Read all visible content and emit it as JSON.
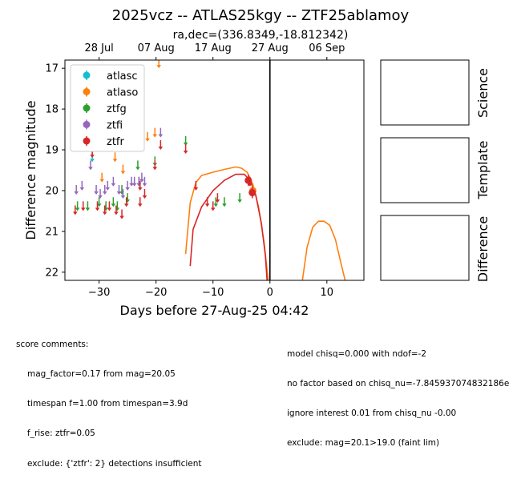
{
  "title": "2025vcz -- ATLAS25kgy -- ZTF25ablamoy",
  "chart_data": {
    "type": "scatter",
    "top_axis_label": "ra,dec=(336.8349,-18.812342)",
    "top_ticks": [
      {
        "x": -30.0,
        "label": "28 Jul"
      },
      {
        "x": -20.0,
        "label": "07 Aug"
      },
      {
        "x": -10.0,
        "label": "17 Aug"
      },
      {
        "x": 0.0,
        "label": "27 Aug"
      },
      {
        "x": 10.0,
        "label": "06 Sep"
      }
    ],
    "xlabel": "Days before 27-Aug-25 04:42",
    "ylabel": "Difference magnitude",
    "xlim": [
      -36,
      16.5
    ],
    "ylim": [
      22.2,
      16.8
    ],
    "xticks": [
      -30,
      -20,
      -10,
      0,
      10
    ],
    "yticks": [
      17,
      18,
      19,
      20,
      21,
      22
    ],
    "vline_x": 0,
    "legend_position": "top-left",
    "series": [
      {
        "name": "atlasc",
        "color": "#17becf",
        "detections": [],
        "upper_limits": [
          [
            -31.2,
            19.2
          ]
        ]
      },
      {
        "name": "atlaso",
        "color": "#ff7f0e",
        "detections": [
          [
            -3.0,
            20.0
          ]
        ],
        "upper_limits": [
          [
            -29.5,
            19.7
          ],
          [
            -27.2,
            19.2
          ],
          [
            -25.8,
            19.5
          ],
          [
            -21.5,
            18.7
          ],
          [
            -20.2,
            18.6
          ],
          [
            -19.5,
            16.9
          ]
        ]
      },
      {
        "name": "ztfg",
        "color": "#2ca02c",
        "detections": [],
        "upper_limits": [
          [
            -33.8,
            20.4
          ],
          [
            -32.0,
            20.4
          ],
          [
            -30.0,
            20.3
          ],
          [
            -28.8,
            20.4
          ],
          [
            -27.5,
            20.3
          ],
          [
            -26.8,
            20.4
          ],
          [
            -26.0,
            20.0
          ],
          [
            -25.0,
            20.2
          ],
          [
            -23.2,
            19.4
          ],
          [
            -23.0,
            19.8
          ],
          [
            -20.2,
            19.3
          ],
          [
            -14.8,
            18.8
          ],
          [
            -9.5,
            20.3
          ],
          [
            -8.0,
            20.3
          ],
          [
            -5.3,
            20.2
          ]
        ]
      },
      {
        "name": "ztfi",
        "color": "#9467bd",
        "detections": [],
        "upper_limits": [
          [
            -34.0,
            20.0
          ],
          [
            -33.0,
            19.9
          ],
          [
            -31.5,
            19.4
          ],
          [
            -30.5,
            20.0
          ],
          [
            -29.8,
            20.1
          ],
          [
            -29.0,
            20.0
          ],
          [
            -28.5,
            19.9
          ],
          [
            -27.5,
            19.8
          ],
          [
            -26.5,
            20.0
          ],
          [
            -25.8,
            20.1
          ],
          [
            -25.0,
            19.9
          ],
          [
            -24.3,
            19.8
          ],
          [
            -23.8,
            19.8
          ],
          [
            -23.0,
            19.8
          ],
          [
            -22.5,
            19.7
          ],
          [
            -22.0,
            19.8
          ],
          [
            -19.2,
            18.6
          ]
        ]
      },
      {
        "name": "ztfr",
        "color": "#d62728",
        "detections": [
          [
            -3.8,
            19.75
          ],
          [
            -3.1,
            20.05
          ]
        ],
        "upper_limits": [
          [
            -34.2,
            20.5
          ],
          [
            -32.8,
            20.4
          ],
          [
            -31.2,
            19.1
          ],
          [
            -30.3,
            20.4
          ],
          [
            -29.0,
            20.5
          ],
          [
            -28.2,
            20.4
          ],
          [
            -27.0,
            20.5
          ],
          [
            -26.0,
            20.6
          ],
          [
            -25.2,
            20.3
          ],
          [
            -22.8,
            20.3
          ],
          [
            -22.8,
            19.9
          ],
          [
            -22.0,
            20.1
          ],
          [
            -20.2,
            19.4
          ],
          [
            -19.2,
            18.9
          ],
          [
            -14.8,
            19.0
          ],
          [
            -13.0,
            19.9
          ],
          [
            -11.0,
            20.3
          ],
          [
            -10.0,
            20.4
          ],
          [
            -9.2,
            20.2
          ],
          [
            -3.5,
            19.8
          ]
        ]
      }
    ],
    "model_curves": [
      {
        "name": "atlaso",
        "color": "#ff7f0e",
        "points": [
          [
            -14.8,
            21.55
          ],
          [
            -14.0,
            20.3
          ],
          [
            -13.0,
            19.8
          ],
          [
            -12.0,
            19.63
          ],
          [
            -10.0,
            19.55
          ],
          [
            -8.0,
            19.48
          ],
          [
            -6.0,
            19.42
          ],
          [
            -5.0,
            19.45
          ],
          [
            -4.0,
            19.55
          ],
          [
            -3.0,
            19.85
          ],
          [
            -2.0,
            20.4
          ],
          [
            -1.0,
            21.3
          ],
          [
            -0.3,
            22.2
          ]
        ]
      },
      {
        "name": "atlaso",
        "color": "#ff7f0e",
        "points": [
          [
            5.7,
            22.2
          ],
          [
            6.5,
            21.4
          ],
          [
            7.5,
            20.9
          ],
          [
            8.5,
            20.75
          ],
          [
            9.5,
            20.75
          ],
          [
            10.5,
            20.85
          ],
          [
            11.5,
            21.2
          ],
          [
            12.5,
            21.8
          ],
          [
            13.2,
            22.2
          ]
        ]
      },
      {
        "name": "ztfr",
        "color": "#d62728",
        "points": [
          [
            -14.0,
            21.85
          ],
          [
            -13.5,
            20.95
          ],
          [
            -12.0,
            20.4
          ],
          [
            -10.0,
            20.0
          ],
          [
            -8.0,
            19.75
          ],
          [
            -6.0,
            19.6
          ],
          [
            -4.5,
            19.6
          ],
          [
            -3.5,
            19.75
          ],
          [
            -2.5,
            20.1
          ],
          [
            -1.5,
            20.8
          ],
          [
            -0.8,
            21.6
          ],
          [
            -0.5,
            22.2
          ]
        ]
      }
    ]
  },
  "panels": [
    "Science",
    "Template",
    "Difference"
  ],
  "comments_left": {
    "heading": "score comments:",
    "lines": [
      "mag_factor=0.17 from mag=20.05",
      "timespan f=1.00 from timespan=3.9d",
      "f_rise: ztfr=0.05",
      "exclude: {'ztfr': 2} detections insufficient"
    ]
  },
  "comments_right": {
    "lines": [
      "model chisq=0.000 with ndof=-2",
      "no factor based on chisq_nu=-7.845937074832186e",
      "ignore interest 0.01 from chisq_nu -0.00",
      "exclude: mag=20.1>19.0 (faint lim)"
    ]
  }
}
